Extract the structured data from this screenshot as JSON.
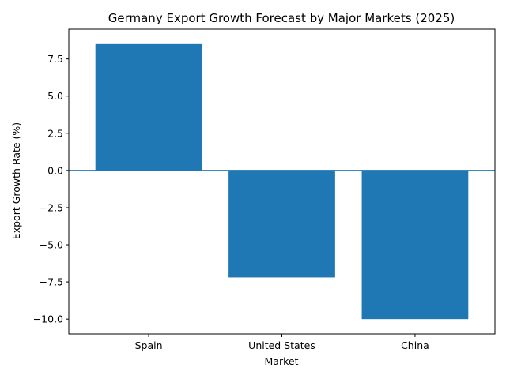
{
  "chart_data": {
    "type": "bar",
    "title": "Germany Export Growth Forecast by Major Markets (2025)",
    "xlabel": "Market",
    "ylabel": "Export Growth Rate (%)",
    "categories": [
      "Spain",
      "United States",
      "China"
    ],
    "values": [
      8.5,
      -7.2,
      -10.0
    ],
    "ylim": [
      -11.0,
      9.5
    ],
    "yticks": [
      -10.0,
      -7.5,
      -5.0,
      -2.5,
      0.0,
      2.5,
      5.0,
      7.5
    ],
    "ytick_labels": [
      "−10.0",
      "−7.5",
      "−5.0",
      "−2.5",
      "0.0",
      "2.5",
      "5.0",
      "7.5"
    ],
    "bar_color": "#1f77b4",
    "zero_line": true,
    "grid": false,
    "legend": "none"
  }
}
